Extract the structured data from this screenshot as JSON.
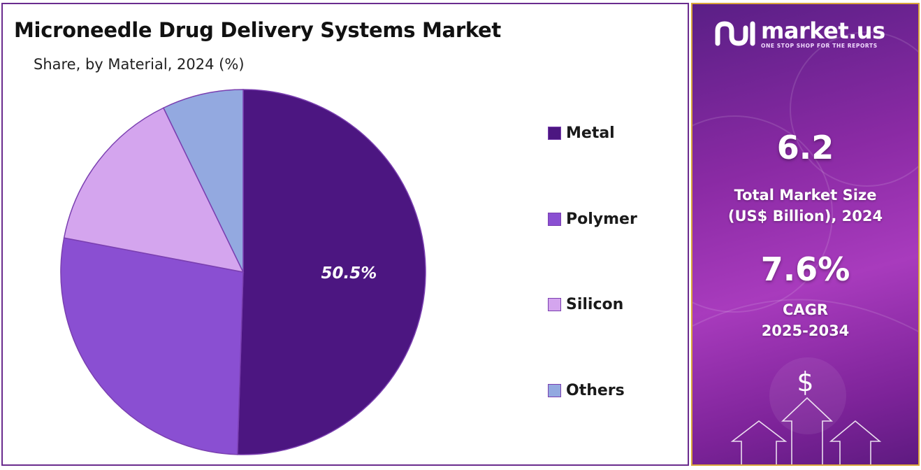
{
  "title": "Microneedle Drug Delivery Systems Market",
  "subtitle": "Share, by Material, 2024 (%)",
  "chart_data": {
    "type": "pie",
    "title": "Microneedle Drug Delivery Systems Market",
    "subtitle": "Share, by Material, 2024 (%)",
    "start_angle_deg": 0,
    "direction": "clockwise",
    "legend_position": "right",
    "slices": [
      {
        "label": "Metal",
        "value": 50.5,
        "color": "#4c1681",
        "data_label": "50.5%"
      },
      {
        "label": "Polymer",
        "value": 27.5,
        "color": "#8a4fd2",
        "data_label": ""
      },
      {
        "label": "Silicon",
        "value": 14.8,
        "color": "#d4a5ee",
        "data_label": ""
      },
      {
        "label": "Others",
        "value": 7.2,
        "color": "#93a9e0",
        "data_label": ""
      }
    ]
  },
  "info_panel": {
    "logo_name": "market.us",
    "logo_tagline": "ONE STOP SHOP FOR THE REPORTS",
    "market_size_value": "6.2",
    "market_size_caption_line1": "Total Market Size",
    "market_size_caption_line2": "(US$ Billion), 2024",
    "cagr_value": "7.6%",
    "cagr_caption_line1": "CAGR",
    "cagr_caption_line2": "2025-2034",
    "dollar_symbol": "$",
    "colors": {
      "gradient_start": "#5a1f86",
      "gradient_mid": "#a83bbd",
      "border": "#d9a53a"
    }
  }
}
